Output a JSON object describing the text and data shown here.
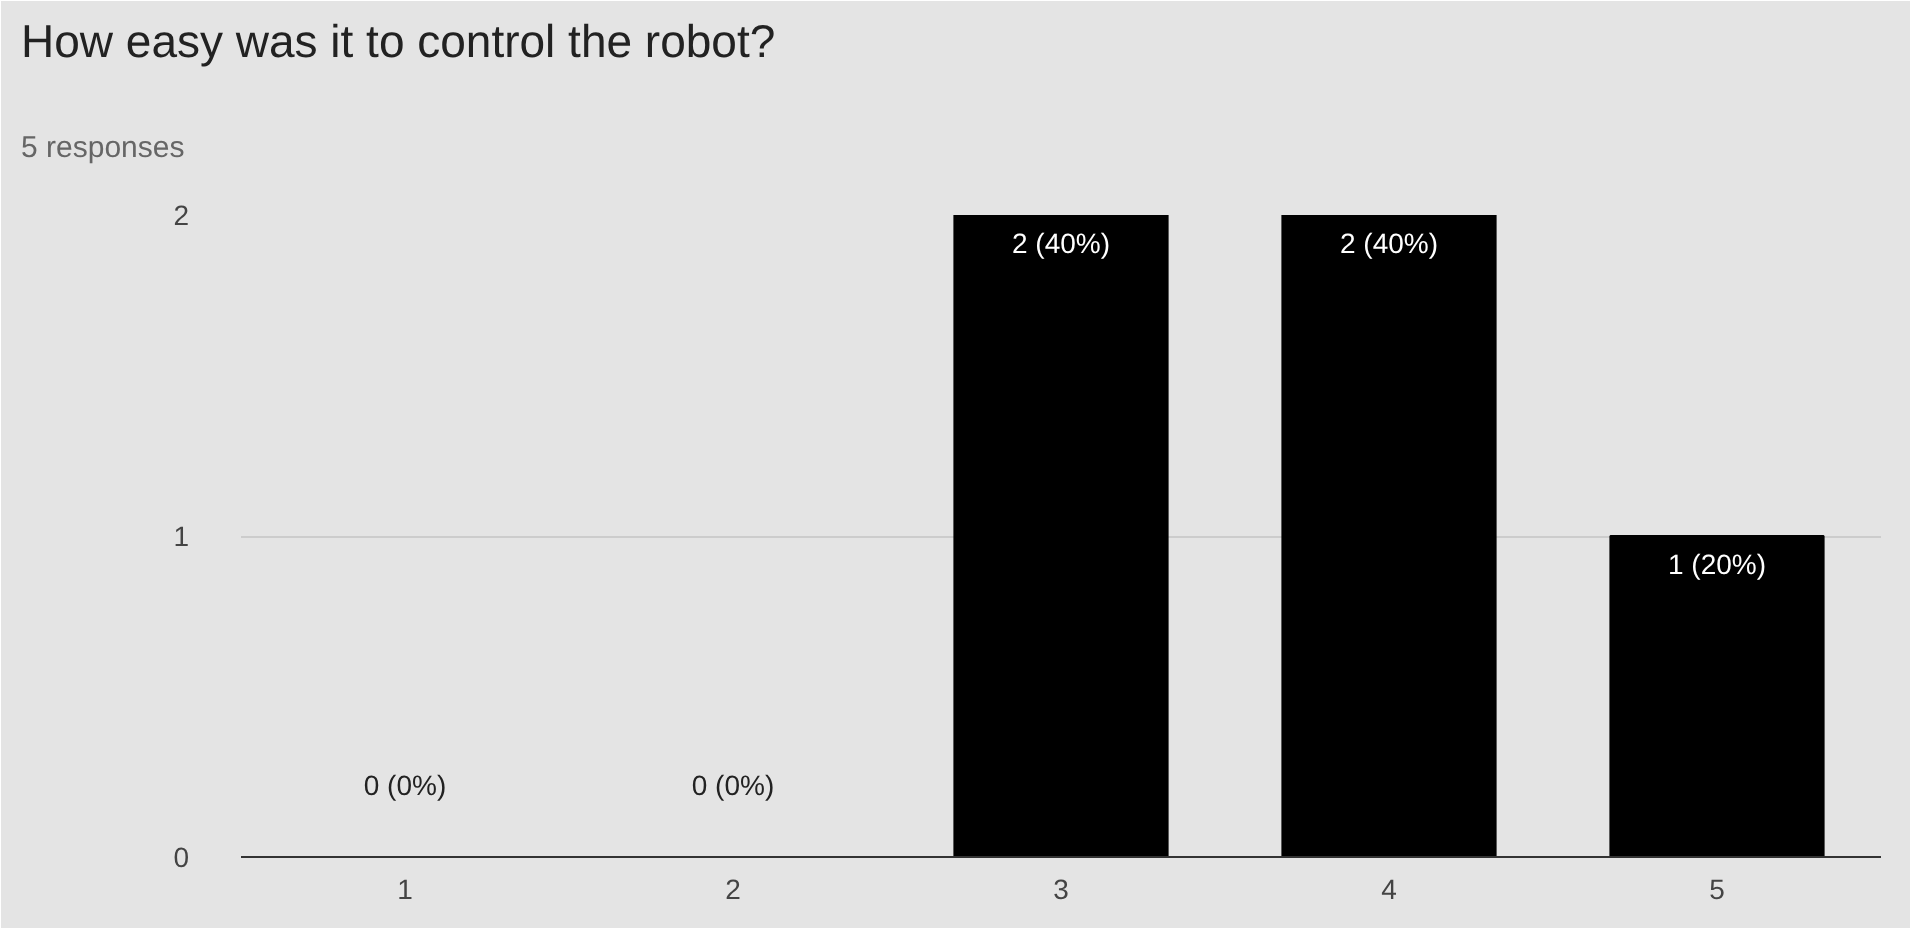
{
  "chart_data": {
    "type": "bar",
    "title": "How easy was it to control the robot?",
    "subtitle": "5 responses",
    "categories": [
      "1",
      "2",
      "3",
      "4",
      "5"
    ],
    "values": [
      0,
      0,
      2,
      2,
      1
    ],
    "color": "#000000",
    "value_labels": [
      "0 (0%)",
      "0 (0%)",
      "2 (40%)",
      "2 (40%)",
      "1 (20%)"
    ],
    "ylim": [
      0,
      2
    ],
    "yticks": [
      0,
      1,
      2
    ],
    "grid": "y"
  }
}
